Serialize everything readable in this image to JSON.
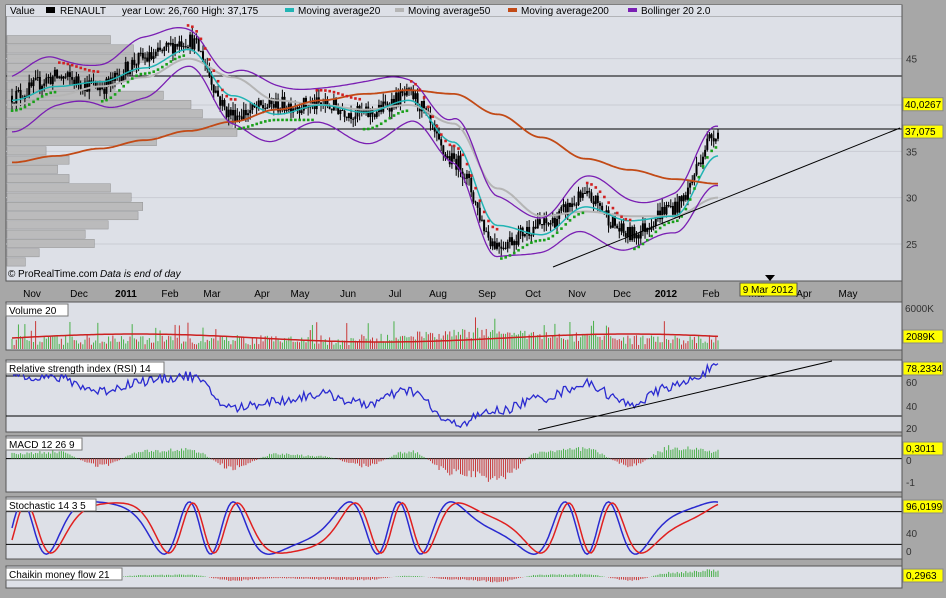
{
  "header": {
    "value_label": "Value",
    "symbol": "RENAULT",
    "range_text": "year Low: 26,760  High: 37,175",
    "legend": [
      {
        "name": "Moving average20",
        "color": "#21b4b4"
      },
      {
        "name": "Moving average50",
        "color": "#b5b5b5"
      },
      {
        "name": "Moving average200",
        "color": "#c24a16"
      },
      {
        "name": "Bollinger 20 2.0",
        "color": "#7a1fb3"
      }
    ]
  },
  "watermark": {
    "brand": "ProRealTime.com",
    "note": "Data is end of day"
  },
  "x_axis": {
    "months": [
      "Nov",
      "Dec",
      "2011",
      "Feb",
      "Mar",
      "Apr",
      "May",
      "Jun",
      "Jul",
      "Aug",
      "Sep",
      "Oct",
      "Nov",
      "Dec",
      "2012",
      "Feb",
      "Mar",
      "Apr",
      "May"
    ],
    "date_marker": "9 Mar 2012"
  },
  "price_panel": {
    "y_ticks": [
      "45",
      "40",
      "35",
      "30",
      "25"
    ],
    "last_value": "37,075",
    "level_value": "40,0267"
  },
  "volume_panel": {
    "label": "Volume 20",
    "top_tick": "6000K",
    "value": "2089K"
  },
  "rsi_panel": {
    "label": "Relative strength index (RSI) 14",
    "ticks": [
      "60",
      "40",
      "20"
    ],
    "value": "78,2334"
  },
  "macd_panel": {
    "label": "MACD 12 26 9",
    "ticks": [
      "0",
      "-1"
    ],
    "value": "0,3011"
  },
  "stoch_panel": {
    "label": "Stochastic 14 3 5",
    "ticks": [
      "40",
      "0"
    ],
    "value": "96,0199"
  },
  "cmf_panel": {
    "label": "Chaikin money flow 21",
    "value": "0,2963"
  },
  "colors": {
    "panel_bg": "#dde0e7",
    "candles": "#000000",
    "ma20": "#21b4b4",
    "ma50": "#b5b5b5",
    "ma200": "#c24a16",
    "bollinger": "#7a1fb3",
    "sar_up": "#1aa01a",
    "sar_down": "#d02020",
    "rsi": "#2a2ad0",
    "stoch_k": "#2a2ad0",
    "stoch_d": "#e02020",
    "hist_up": "#4ab04a",
    "hist_down": "#c83838",
    "value_box": "#ffff00"
  },
  "chart_data": [
    {
      "type": "line",
      "title": "RENAULT",
      "xlabel": "",
      "ylabel": "",
      "ylim": [
        21,
        49.5
      ],
      "x": [
        "2010-10",
        "2010-11",
        "2010-12",
        "2011-01",
        "2011-02",
        "2011-03",
        "2011-04",
        "2011-05",
        "2011-06",
        "2011-07",
        "2011-08",
        "2011-09",
        "2011-10",
        "2011-11",
        "2011-12",
        "2012-01",
        "2012-02"
      ],
      "series": [
        {
          "name": "RENAULT",
          "values": [
            41,
            43,
            42,
            45,
            47,
            39,
            40,
            40,
            39,
            41,
            34,
            25,
            27,
            30,
            26,
            29,
            37.075
          ]
        },
        {
          "name": "Moving average20",
          "values": [
            40.5,
            42,
            42.5,
            44,
            46,
            41,
            39,
            40,
            39.2,
            40.5,
            36,
            27,
            26,
            29,
            27.5,
            28,
            34.5
          ]
        },
        {
          "name": "Moving average50",
          "values": [
            40,
            41,
            42,
            43,
            45,
            43,
            40.5,
            40,
            39.5,
            40,
            38,
            31,
            28,
            28.5,
            28,
            28,
            30
          ]
        },
        {
          "name": "Moving average200",
          "values": [
            33.8,
            34.5,
            35.3,
            36.2,
            37.2,
            38.2,
            39.5,
            40.5,
            41.2,
            41.6,
            41.2,
            39,
            36.5,
            34.2,
            33,
            32,
            31.5
          ]
        }
      ],
      "volume_profile": [
        {
          "price": 47,
          "volume": 0.45
        },
        {
          "price": 46,
          "volume": 0.55
        },
        {
          "price": 45,
          "volume": 0.62
        },
        {
          "price": 44,
          "volume": 0.57
        },
        {
          "price": 43,
          "volume": 0.53
        },
        {
          "price": 42,
          "volume": 0.47
        },
        {
          "price": 41,
          "volume": 0.68
        },
        {
          "price": 40,
          "volume": 0.8
        },
        {
          "price": 39,
          "volume": 0.85
        },
        {
          "price": 38,
          "volume": 0.98
        },
        {
          "price": 37,
          "volume": 1.0
        },
        {
          "price": 36,
          "volume": 0.65
        },
        {
          "price": 35,
          "volume": 0.17
        },
        {
          "price": 34,
          "volume": 0.27
        },
        {
          "price": 33,
          "volume": 0.22
        },
        {
          "price": 32,
          "volume": 0.27
        },
        {
          "price": 31,
          "volume": 0.45
        },
        {
          "price": 30,
          "volume": 0.54
        },
        {
          "price": 29,
          "volume": 0.59
        },
        {
          "price": 28,
          "volume": 0.57
        },
        {
          "price": 27,
          "volume": 0.44
        },
        {
          "price": 26,
          "volume": 0.34
        },
        {
          "price": 25,
          "volume": 0.38
        },
        {
          "price": 24,
          "volume": 0.14
        },
        {
          "price": 23,
          "volume": 0.08
        }
      ]
    },
    {
      "type": "line",
      "title": "Relative strength index (RSI) 14",
      "ylim": [
        15,
        85
      ],
      "x": [
        "2010-10",
        "2010-11",
        "2010-12",
        "2011-01",
        "2011-02",
        "2011-03",
        "2011-04",
        "2011-05",
        "2011-06",
        "2011-07",
        "2011-08",
        "2011-09",
        "2011-10",
        "2011-11",
        "2011-12",
        "2012-01",
        "2012-02"
      ],
      "series": [
        {
          "name": "Relative strength index (RSI) 14",
          "values": [
            72,
            68,
            55,
            65,
            70,
            38,
            45,
            52,
            42,
            55,
            22,
            35,
            48,
            62,
            42,
            60,
            78.2334
          ]
        }
      ]
    },
    {
      "type": "bar",
      "title": "MACD 12 26 9",
      "ylim": [
        -1.2,
        0.8
      ],
      "x": [
        "2010-10",
        "2010-11",
        "2010-12",
        "2011-01",
        "2011-02",
        "2011-03",
        "2011-04",
        "2011-05",
        "2011-06",
        "2011-07",
        "2011-08",
        "2011-09",
        "2011-10",
        "2011-11",
        "2011-12",
        "2012-01",
        "2012-02"
      ],
      "series": [
        {
          "name": "MACD 12 26 9",
          "values": [
            0.2,
            0.3,
            -0.3,
            0.3,
            0.4,
            -0.4,
            0.2,
            0.1,
            -0.3,
            0.3,
            -0.6,
            -0.9,
            0.3,
            0.4,
            -0.3,
            0.5,
            0.3011
          ]
        }
      ]
    },
    {
      "type": "line",
      "title": "Stochastic 14 3 5",
      "ylim": [
        -5,
        105
      ],
      "x": [
        "2010-10",
        "2010-11",
        "2010-12",
        "2011-01",
        "2011-02",
        "2011-03",
        "2011-04",
        "2011-05",
        "2011-06",
        "2011-07",
        "2011-08",
        "2011-09",
        "2011-10",
        "2011-11",
        "2011-12",
        "2012-01",
        "2012-02"
      ],
      "series": [
        {
          "name": "%K",
          "values": [
            80,
            30,
            70,
            20,
            85,
            10,
            80,
            40,
            20,
            85,
            5,
            70,
            40,
            90,
            10,
            80,
            96.0199
          ]
        },
        {
          "name": "%D",
          "values": [
            75,
            40,
            60,
            30,
            80,
            20,
            70,
            50,
            25,
            80,
            15,
            60,
            45,
            85,
            20,
            70,
            90
          ]
        }
      ]
    },
    {
      "type": "bar",
      "title": "Chaikin money flow 21",
      "ylim": [
        -0.4,
        0.4
      ],
      "x": [
        "2010-10",
        "2010-11",
        "2010-12",
        "2011-01",
        "2011-02",
        "2011-03",
        "2011-04",
        "2011-05",
        "2011-06",
        "2011-07",
        "2011-08",
        "2011-09",
        "2011-10",
        "2011-11",
        "2011-12",
        "2012-01",
        "2012-02"
      ],
      "series": [
        {
          "name": "Chaikin money flow 21",
          "values": [
            0.05,
            0.1,
            -0.05,
            0.08,
            0.1,
            -0.15,
            -0.05,
            -0.1,
            -0.12,
            0.05,
            -0.1,
            -0.2,
            0.1,
            0.12,
            -0.15,
            0.2,
            0.2963
          ]
        }
      ]
    }
  ]
}
